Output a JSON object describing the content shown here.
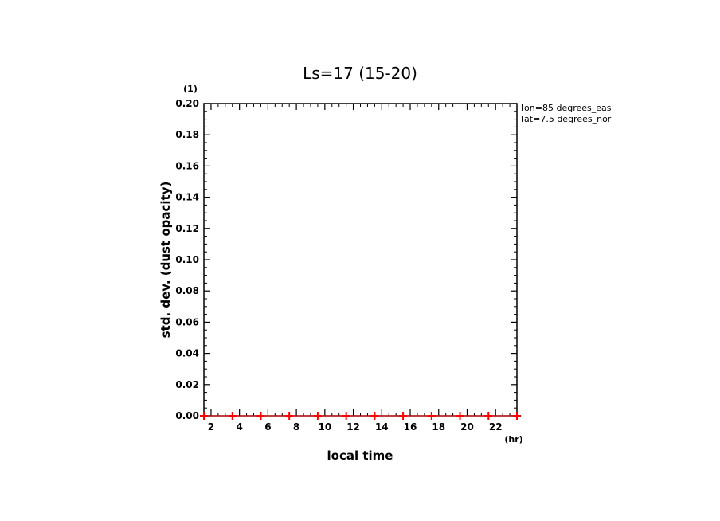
{
  "chart_data": {
    "type": "scatter",
    "title": "Ls=17 (15-20)",
    "xlabel": "local time",
    "ylabel": "std. dev. (dust opacity)",
    "x_unit": "(hr)",
    "y_unit": "(1)",
    "xlim": [
      1.5,
      23.5
    ],
    "ylim": [
      0,
      0.2
    ],
    "x_ticks": [
      2,
      4,
      6,
      8,
      10,
      12,
      14,
      16,
      18,
      20,
      22
    ],
    "y_ticks": [
      0.0,
      0.02,
      0.04,
      0.06,
      0.08,
      0.1,
      0.12,
      0.14,
      0.16,
      0.18,
      0.2
    ],
    "x_tick_labels": [
      "2",
      "4",
      "6",
      "8",
      "10",
      "12",
      "14",
      "16",
      "18",
      "20",
      "22"
    ],
    "y_tick_labels": [
      "0.00",
      "0.02",
      "0.04",
      "0.06",
      "0.08",
      "0.10",
      "0.12",
      "0.14",
      "0.16",
      "0.18",
      "0.20"
    ],
    "annotations": [
      "lon=85 degrees_eas",
      "lat=7.5 degrees_nor"
    ],
    "series": [
      {
        "marker": "+",
        "color": "#ff0000",
        "x": [
          1.5,
          3.5,
          5.5,
          7.5,
          9.5,
          11.5,
          13.5,
          15.5,
          17.5,
          19.5,
          21.5,
          23.5
        ],
        "y": [
          0,
          0,
          0,
          0,
          0,
          0,
          0,
          0,
          0,
          0,
          0,
          0
        ]
      }
    ],
    "grid": false
  }
}
